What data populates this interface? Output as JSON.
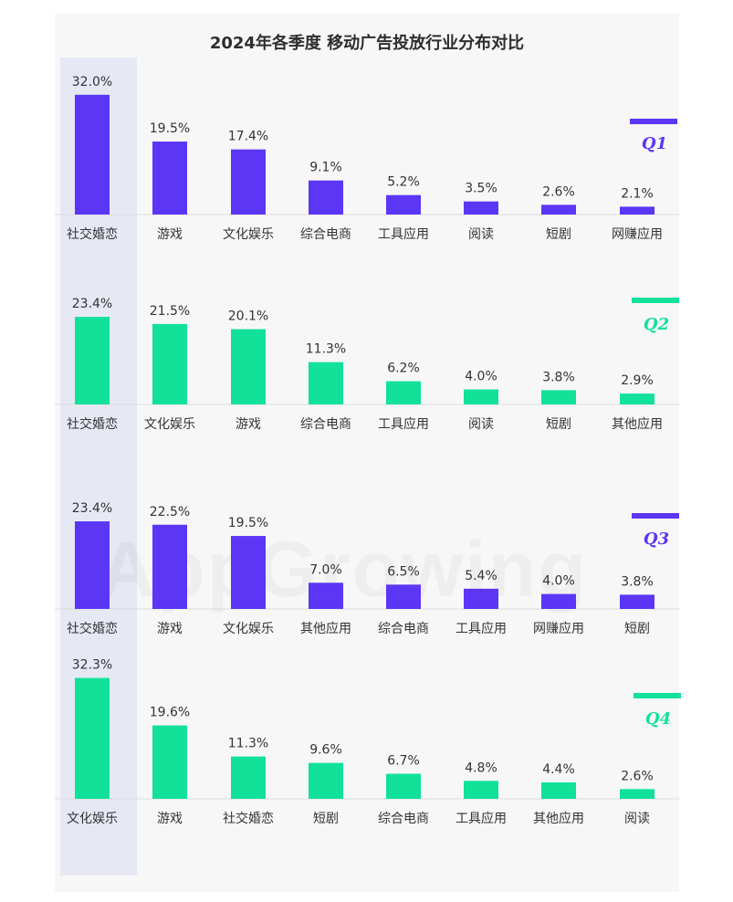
{
  "title": "2024年各季度 移动广告投放行业分布对比",
  "watermark": "AppGrowing",
  "colors": {
    "purple": "#5b36f5",
    "green": "#12e199",
    "highlight": "#e6e9f4"
  },
  "chart_data": [
    {
      "type": "bar",
      "quarter": "Q1",
      "color": "#5b36f5",
      "categories": [
        "社交婚恋",
        "游戏",
        "文化娱乐",
        "综合电商",
        "工具应用",
        "阅读",
        "短剧",
        "网赚应用"
      ],
      "values": [
        32.0,
        19.5,
        17.4,
        9.1,
        5.2,
        3.5,
        2.6,
        2.1
      ],
      "labels": [
        "32.0%",
        "19.5%",
        "17.4%",
        "9.1%",
        "5.2%",
        "3.5%",
        "2.6%",
        "2.1%"
      ],
      "unit": "%"
    },
    {
      "type": "bar",
      "quarter": "Q2",
      "color": "#12e199",
      "categories": [
        "社交婚恋",
        "文化娱乐",
        "游戏",
        "综合电商",
        "工具应用",
        "阅读",
        "短剧",
        "其他应用"
      ],
      "values": [
        23.4,
        21.5,
        20.1,
        11.3,
        6.2,
        4.0,
        3.8,
        2.9
      ],
      "labels": [
        "23.4%",
        "21.5%",
        "20.1%",
        "11.3%",
        "6.2%",
        "4.0%",
        "3.8%",
        "2.9%"
      ],
      "unit": "%"
    },
    {
      "type": "bar",
      "quarter": "Q3",
      "color": "#5b36f5",
      "categories": [
        "社交婚恋",
        "游戏",
        "文化娱乐",
        "其他应用",
        "综合电商",
        "工具应用",
        "网赚应用",
        "短剧"
      ],
      "values": [
        23.4,
        22.5,
        19.5,
        7.0,
        6.5,
        5.4,
        4.0,
        3.8
      ],
      "labels": [
        "23.4%",
        "22.5%",
        "19.5%",
        "7.0%",
        "6.5%",
        "5.4%",
        "4.0%",
        "3.8%"
      ],
      "unit": "%"
    },
    {
      "type": "bar",
      "quarter": "Q4",
      "color": "#12e199",
      "categories": [
        "文化娱乐",
        "游戏",
        "社交婚恋",
        "短剧",
        "综合电商",
        "工具应用",
        "其他应用",
        "阅读"
      ],
      "values": [
        32.3,
        19.6,
        11.3,
        9.6,
        6.7,
        4.8,
        4.4,
        2.6
      ],
      "labels": [
        "32.3%",
        "19.6%",
        "11.3%",
        "9.6%",
        "6.7%",
        "4.8%",
        "4.4%",
        "2.6%"
      ],
      "unit": "%"
    }
  ]
}
